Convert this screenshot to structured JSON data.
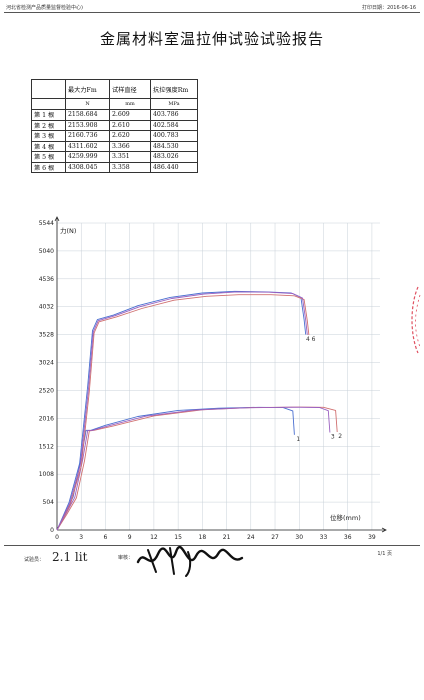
{
  "header": {
    "org": "河北省检测产品质量监督检验中心)",
    "print_date": "打印日期：2016-06-16"
  },
  "title": "金属材料室温拉伸试验试验报告",
  "table": {
    "headers": [
      "",
      "最大力Fm",
      "试样直径",
      "抗拉强度Rm"
    ],
    "units": [
      "",
      "N",
      "mm",
      "MPa"
    ],
    "rows": [
      [
        "第 1 根",
        "2158.684",
        "2.609",
        "403.786"
      ],
      [
        "第 2 根",
        "2153.908",
        "2.610",
        "402.584"
      ],
      [
        "第 3 根",
        "2160.736",
        "2.620",
        "400.783"
      ],
      [
        "第 4 根",
        "4311.602",
        "3.366",
        "484.530"
      ],
      [
        "第 5 根",
        "4259.999",
        "3.351",
        "483.026"
      ],
      [
        "第 6 根",
        "4308.045",
        "3.358",
        "486.440"
      ]
    ]
  },
  "chart_data": {
    "type": "line",
    "ylabel": "力(N)",
    "xlabel": "位移(mm)",
    "xlim": [
      0,
      40
    ],
    "ylim": [
      0,
      5544
    ],
    "xticks": [
      0,
      3,
      6,
      9,
      12,
      15,
      18,
      21,
      24,
      27,
      30,
      33,
      36,
      39
    ],
    "yticks": [
      0,
      504,
      1008,
      1512,
      2016,
      2520,
      3024,
      3528,
      4032,
      4536,
      5040,
      5544
    ],
    "grid": true,
    "end_labels": [
      "1",
      "3",
      "2",
      "4 6"
    ],
    "series": [
      {
        "color": "#4a6fd0",
        "x": [
          0,
          1,
          2,
          3,
          3.6,
          4.2,
          6,
          10,
          15,
          20,
          25,
          28,
          29.2,
          29.4
        ],
        "y": [
          0,
          300,
          600,
          1300,
          1800,
          1800,
          1890,
          2050,
          2160,
          2200,
          2215,
          2210,
          2150,
          1720
        ]
      },
      {
        "color": "#d07070",
        "x": [
          0,
          1.2,
          2.4,
          3.4,
          4.0,
          4.6,
          7,
          12,
          18,
          24,
          30,
          33,
          34.5,
          34.7
        ],
        "y": [
          0,
          280,
          580,
          1250,
          1790,
          1800,
          1880,
          2060,
          2170,
          2210,
          2220,
          2215,
          2160,
          1770
        ]
      },
      {
        "color": "#9a60c0",
        "x": [
          0,
          1.1,
          2.2,
          3.2,
          3.8,
          4.4,
          6.5,
          11,
          17,
          23,
          29,
          32.5,
          33.6,
          33.8
        ],
        "y": [
          0,
          290,
          590,
          1280,
          1795,
          1800,
          1885,
          2055,
          2165,
          2205,
          2218,
          2213,
          2155,
          1760
        ]
      },
      {
        "color": "#4a6fd0",
        "x": [
          0,
          1.5,
          2.8,
          3.8,
          4.4,
          5.0,
          7,
          10,
          14,
          18,
          22,
          26,
          29,
          30.2,
          30.6,
          30.8
        ],
        "y": [
          0,
          500,
          1200,
          2600,
          3600,
          3800,
          3880,
          4050,
          4200,
          4280,
          4310,
          4300,
          4280,
          4200,
          3800,
          3530
        ]
      },
      {
        "color": "#d07070",
        "x": [
          0,
          1.7,
          3.0,
          4.0,
          4.6,
          5.2,
          7.4,
          10.5,
          14.5,
          18.5,
          22.5,
          26.5,
          29.4,
          30.6,
          31.0,
          31.2
        ],
        "y": [
          0,
          480,
          1150,
          2500,
          3560,
          3760,
          3850,
          4000,
          4150,
          4220,
          4250,
          4250,
          4230,
          4160,
          3780,
          3520
        ]
      },
      {
        "color": "#9a60c0",
        "x": [
          0,
          1.6,
          2.9,
          3.9,
          4.5,
          5.1,
          7.2,
          10.2,
          14.2,
          18.2,
          22.2,
          26.2,
          29.2,
          30.4,
          30.8,
          31.0
        ],
        "y": [
          0,
          490,
          1180,
          2550,
          3580,
          3780,
          3870,
          4030,
          4180,
          4260,
          4300,
          4295,
          4270,
          4190,
          3790,
          3525
        ]
      }
    ]
  },
  "footer": {
    "tester_label": "试验员：",
    "tester_sig": "2.1 lit",
    "reviewer_label": "审核：",
    "page": "1/1 页"
  },
  "stamp_color": "#e05060"
}
